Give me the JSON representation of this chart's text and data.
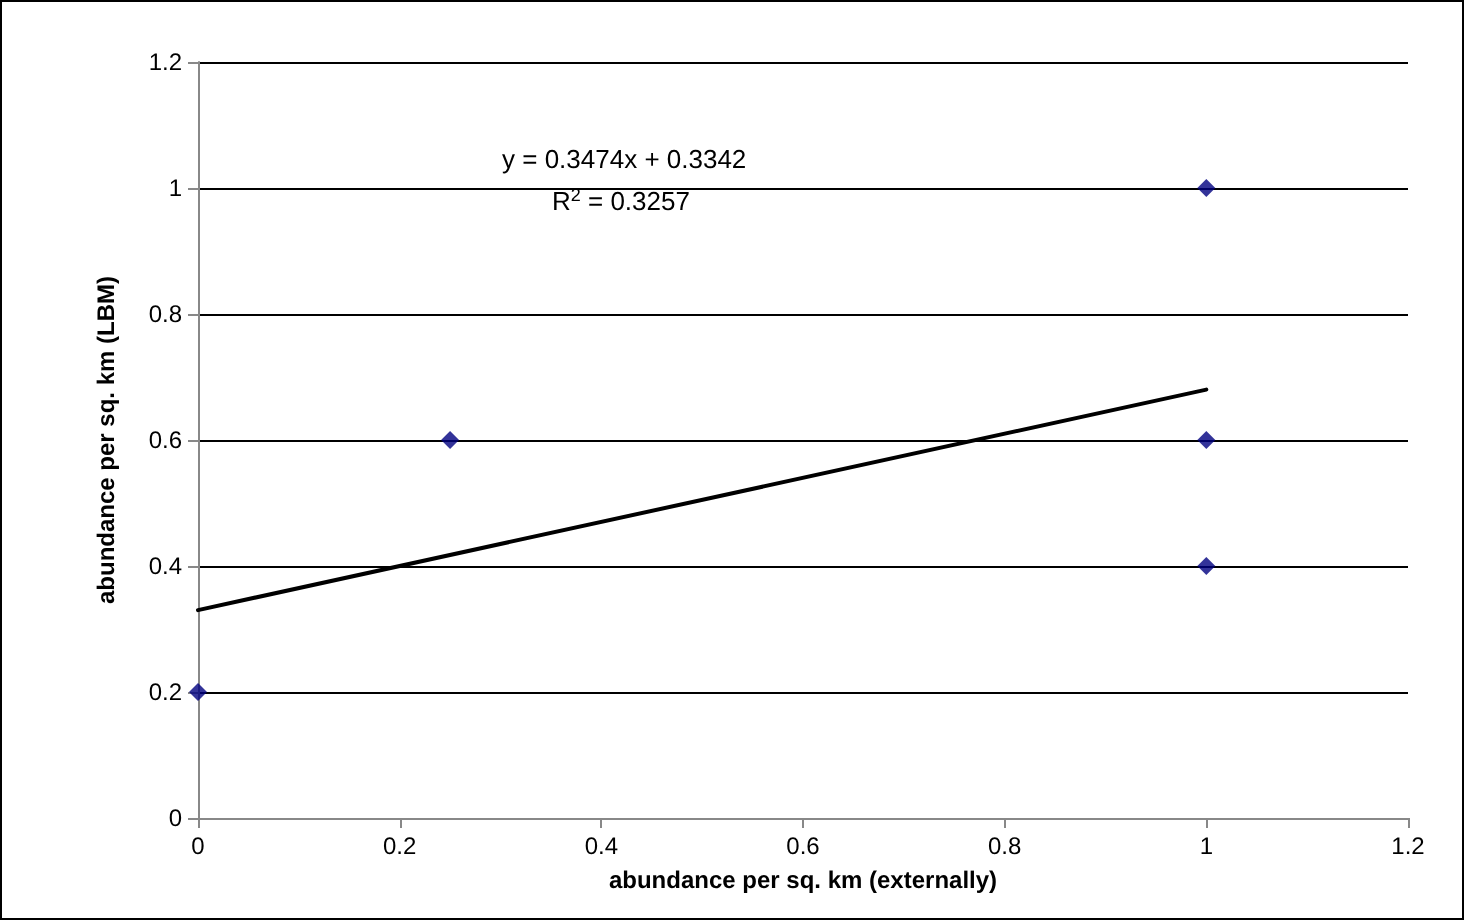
{
  "chart_data": {
    "type": "scatter",
    "xlabel": "abundance per sq. km (externally)",
    "ylabel": "abundance per sq. km (LBM)",
    "series": [
      {
        "color": "#000080",
        "x": [
          0,
          0.25,
          1,
          1,
          1
        ],
        "values": [
          0.2,
          0.6,
          1,
          0.6,
          0.4
        ],
        "marker": "diamond"
      },
      {
        "type": "line",
        "color": "#000000",
        "x": [
          0,
          1
        ],
        "values": [
          0.33,
          0.68
        ],
        "marker": "none"
      }
    ],
    "annotations": [
      "y = 0.3474x + 0.3342",
      "R$^{2}$ = 0.3257"
    ],
    "xlim": [
      0,
      1.2
    ],
    "xticks": [
      0,
      0.2,
      0.4,
      0.6,
      0.8,
      1,
      1.2
    ],
    "ylim": [
      0,
      1.2
    ],
    "yticks": [
      0,
      0.2,
      0.4,
      0.6,
      0.8,
      1,
      1.2
    ],
    "grid": "y"
  }
}
